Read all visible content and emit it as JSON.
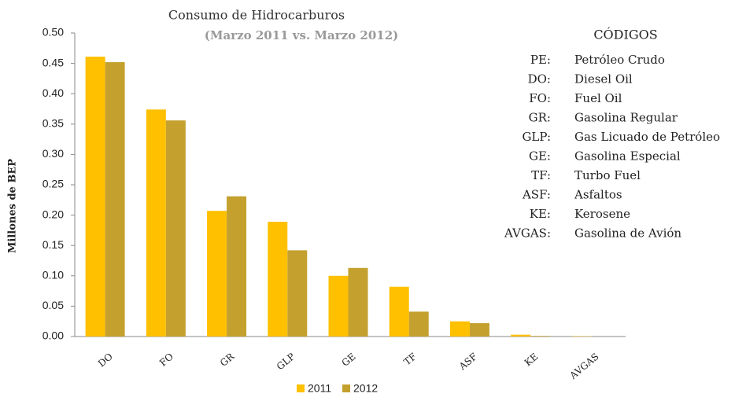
{
  "chart_data": {
    "type": "bar",
    "title": "Consumo de Hidrocarburos",
    "subtitle": "(Marzo 2011 vs. Marzo 2012)",
    "y_label": "Millones de BEP",
    "categories": [
      "DO",
      "FO",
      "GR",
      "GLP",
      "GE",
      "TF",
      "ASF",
      "KE",
      "AVGAS"
    ],
    "series": [
      {
        "name": "2011",
        "color": "#FFC000",
        "values": [
          0.461,
          0.374,
          0.207,
          0.189,
          0.1,
          0.082,
          0.025,
          0.003,
          0.0005
        ]
      },
      {
        "name": "2012",
        "color": "#C4A12E",
        "values": [
          0.452,
          0.356,
          0.231,
          0.142,
          0.113,
          0.041,
          0.022,
          0.001,
          0
        ]
      }
    ],
    "ylim": [
      0,
      0.5
    ],
    "yticks": [
      {
        "value": 0,
        "label": "0.00"
      },
      {
        "value": 0.05,
        "label": "0.05"
      },
      {
        "value": 0.1,
        "label": "0.10"
      },
      {
        "value": 0.15,
        "label": "0.15"
      },
      {
        "value": 0.2,
        "label": "0.20"
      },
      {
        "value": 0.25,
        "label": "0.25"
      },
      {
        "value": 0.3,
        "label": "0.30"
      },
      {
        "value": 0.35,
        "label": "0.35"
      },
      {
        "value": 0.4,
        "label": "0.40"
      },
      {
        "value": 0.45,
        "label": "0.45"
      },
      {
        "value": 0.5,
        "label": "0.50"
      }
    ],
    "legend": "bottom"
  },
  "codes": {
    "title": "CÓDIGOS",
    "items": [
      {
        "code": "PE:",
        "name": "Petróleo Crudo"
      },
      {
        "code": "DO:",
        "name": "Diesel Oil"
      },
      {
        "code": "FO:",
        "name": "Fuel Oil"
      },
      {
        "code": "GR:",
        "name": "Gasolina Regular"
      },
      {
        "code": "GLP:",
        "name": "Gas Licuado de Petróleo"
      },
      {
        "code": "GE:",
        "name": "Gasolina Especial"
      },
      {
        "code": "TF:",
        "name": "Turbo Fuel"
      },
      {
        "code": "ASF:",
        "name": "Asfaltos"
      },
      {
        "code": "KE:",
        "name": "Kerosene"
      },
      {
        "code": "AVGAS:",
        "name": "Gasolina de Avión"
      }
    ]
  }
}
